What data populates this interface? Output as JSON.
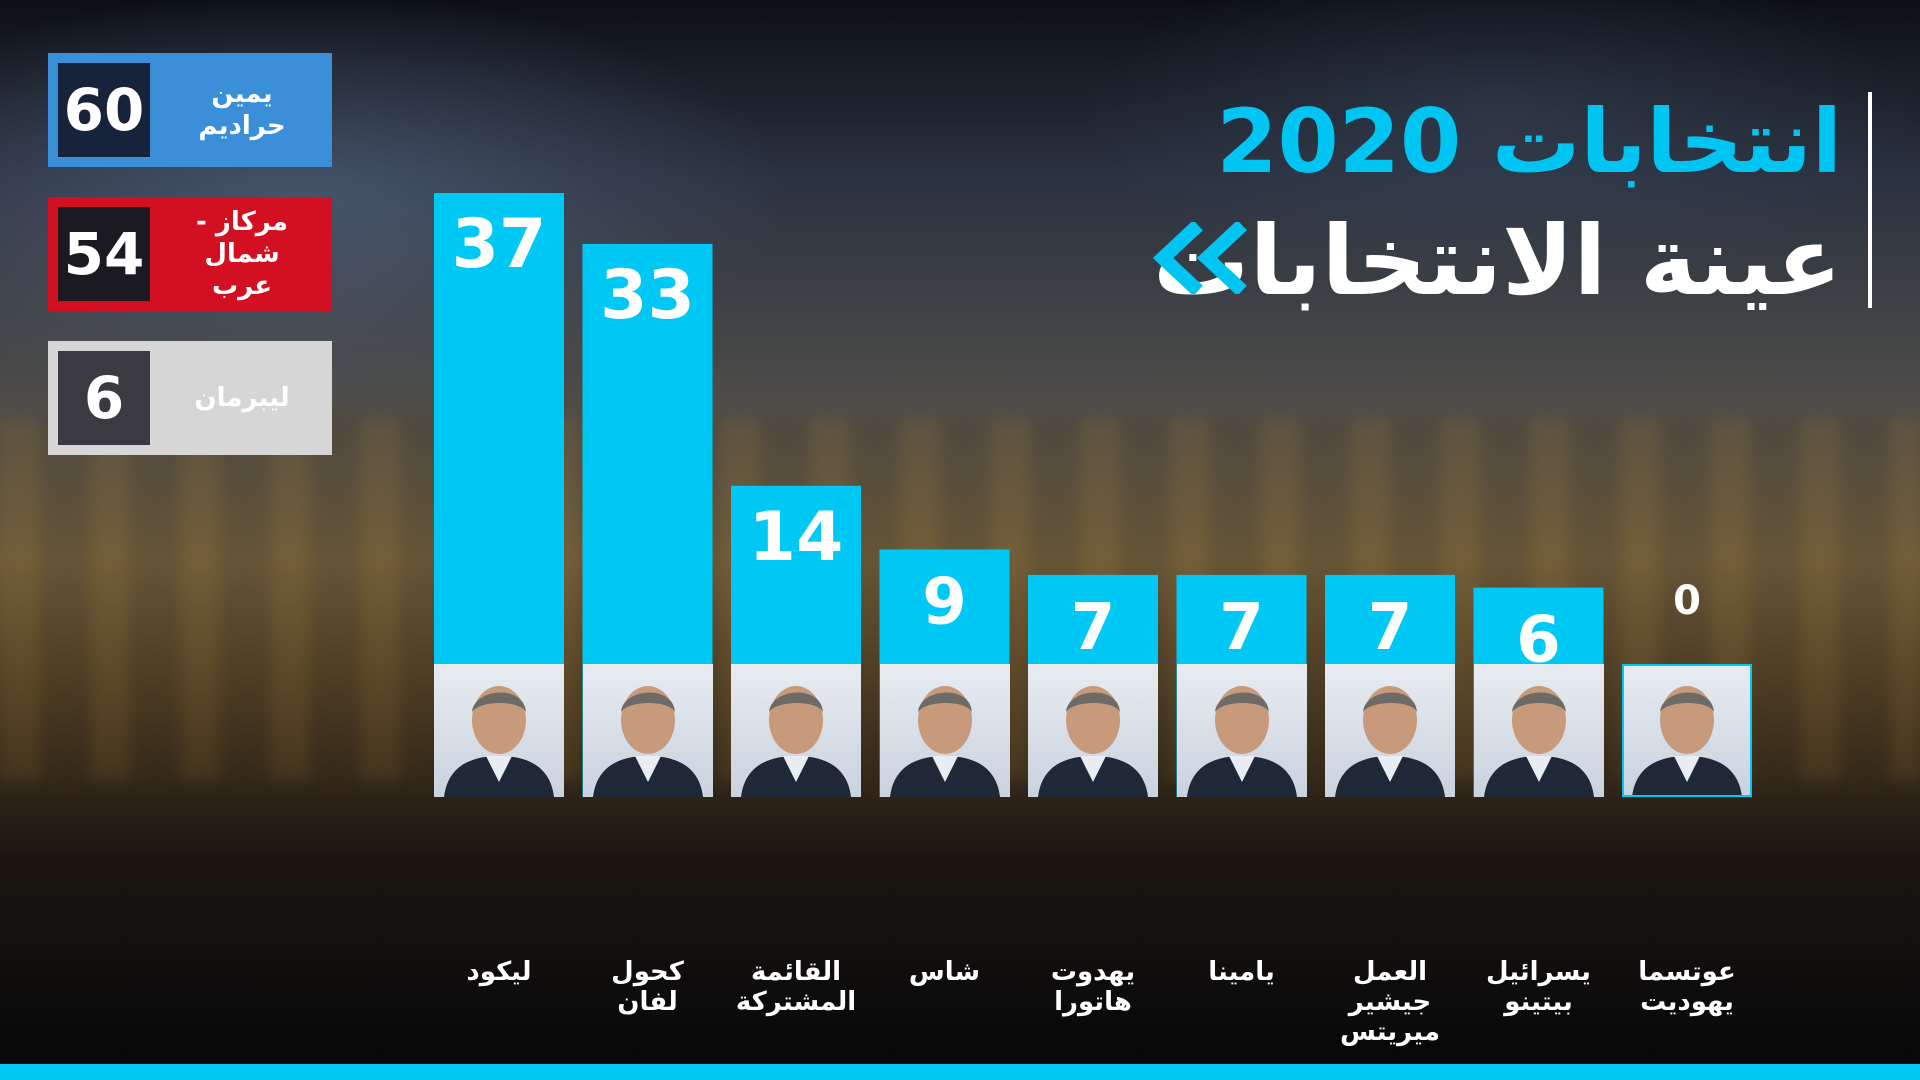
{
  "title": {
    "line1": "انتخابات 2020",
    "line2": "عينة الانتخابات"
  },
  "icons": {
    "title_arrow": "double-chevron-left-icon"
  },
  "colors": {
    "accent": "#00c4f2",
    "bar": "#00c8f4",
    "right_block": "#3b8fd8",
    "center_left_block": "#d30f22",
    "lieberman_block": "#d6d6d6"
  },
  "blocs": [
    {
      "value": "60",
      "lines": [
        "يمين",
        "حراديم"
      ]
    },
    {
      "value": "54",
      "lines": [
        "مركاز - شمال",
        "عرب"
      ]
    },
    {
      "value": "6",
      "lines": [
        "ليبرمان"
      ]
    }
  ],
  "chart_data": {
    "type": "bar",
    "title": "انتخابات 2020",
    "subtitle": "عينة الانتخابات",
    "categories": [
      [
        "ليكود"
      ],
      [
        "كحول لفان"
      ],
      [
        "القائمة",
        "المشتركة"
      ],
      [
        "شاس"
      ],
      [
        "يهدوت",
        "هاتورا"
      ],
      [
        "يامينا"
      ],
      [
        "العمل",
        "جيشير",
        "ميريتس"
      ],
      [
        "يسرائيل",
        "بيتينو"
      ],
      [
        "عوتسما",
        "يهوديت"
      ]
    ],
    "values": [
      37,
      33,
      14,
      9,
      7,
      7,
      7,
      6,
      0
    ],
    "value_labels": [
      "37",
      "33",
      "14",
      "9",
      "7",
      "7",
      "7",
      "6",
      "0"
    ],
    "ylim": [
      0,
      37
    ],
    "grid": false,
    "legend": "top-left"
  }
}
